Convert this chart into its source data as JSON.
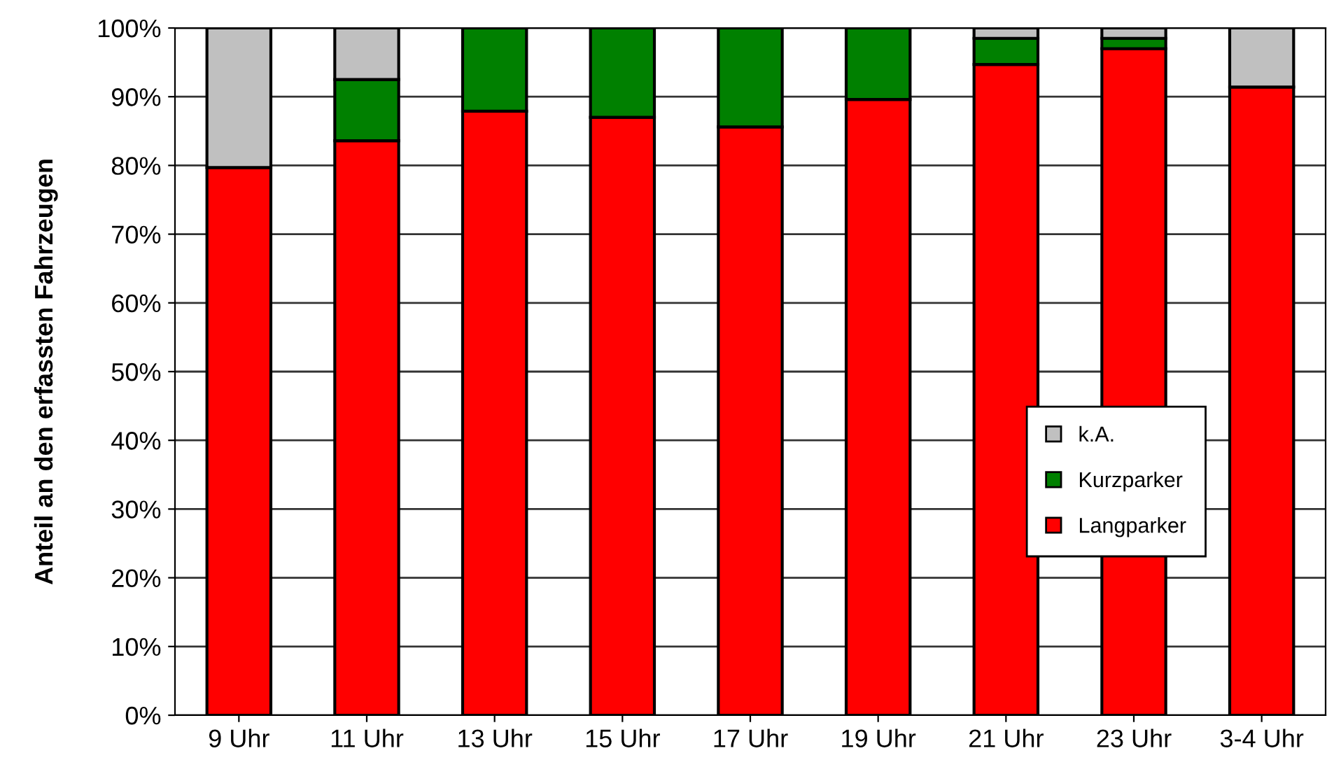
{
  "chart_data": {
    "type": "bar",
    "stacked": true,
    "ylabel": "Anteil an den erfassten Fahrzeugen",
    "categories": [
      "9 Uhr",
      "11 Uhr",
      "13 Uhr",
      "15 Uhr",
      "17 Uhr",
      "19 Uhr",
      "21 Uhr",
      "23 Uhr",
      "3-4 Uhr"
    ],
    "series": [
      {
        "name": "Langparker",
        "color": "#ff0000",
        "values": [
          79.7,
          83.6,
          87.9,
          87.0,
          85.6,
          89.6,
          94.7,
          97.0,
          91.4
        ]
      },
      {
        "name": "Kurzparker",
        "color": "#008000",
        "values": [
          null,
          8.9,
          12.1,
          13.0,
          14.4,
          10.4,
          3.8,
          1.5,
          null
        ]
      },
      {
        "name": "k.A.",
        "color": "#c0c0c0",
        "values": [
          20.3,
          7.5,
          null,
          null,
          null,
          null,
          1.5,
          1.5,
          8.6
        ]
      }
    ],
    "ylim": [
      0,
      100
    ],
    "yticks": [
      {
        "value": 0,
        "label": "0%"
      },
      {
        "value": 10,
        "label": "10%"
      },
      {
        "value": 20,
        "label": "20%"
      },
      {
        "value": 30,
        "label": "30%"
      },
      {
        "value": 40,
        "label": "40%"
      },
      {
        "value": 50,
        "label": "50%"
      },
      {
        "value": 60,
        "label": "60%"
      },
      {
        "value": 70,
        "label": "70%"
      },
      {
        "value": 80,
        "label": "80%"
      },
      {
        "value": 90,
        "label": "90%"
      },
      {
        "value": 100,
        "label": "100%"
      }
    ],
    "grid": "y",
    "legend": "center right"
  }
}
